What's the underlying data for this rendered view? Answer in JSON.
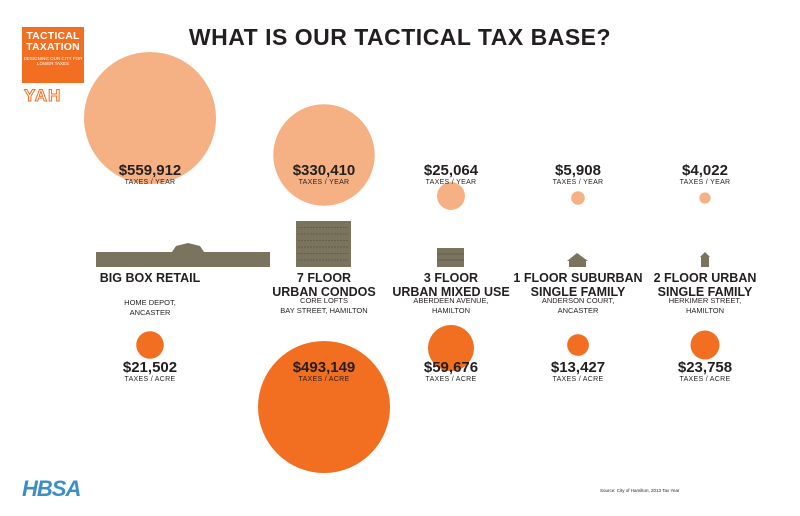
{
  "logo": {
    "line1": "TACTICAL",
    "line2": "TAXATION",
    "line3": "DESIGNING OUR CITY FOR LOWER TAXES",
    "sub": "YAH"
  },
  "title": "WHAT IS OUR TACTICAL TAX BASE?",
  "footer_logo": "HBSA",
  "source": "Source: City of Hamilton, 2013 Tax Year",
  "colors": {
    "year_bubble": "#f5b183",
    "acre_bubble": "#f26f21",
    "building": "#7a735d",
    "text": "#231f20"
  },
  "chart_data": {
    "type": "bubble",
    "categories": [
      "BIG BOX RETAIL",
      "7 FLOOR URBAN CONDOS",
      "3 FLOOR URBAN MIXED USE",
      "1 FLOOR SUBURBAN SINGLE FAMILY",
      "2 FLOOR URBAN SINGLE FAMILY"
    ],
    "name_lines": [
      [
        "BIG BOX RETAIL"
      ],
      [
        "7 FLOOR",
        "URBAN CONDOS"
      ],
      [
        "3 FLOOR",
        "URBAN MIXED USE"
      ],
      [
        "1 FLOOR SUBURBAN",
        "SINGLE FAMILY"
      ],
      [
        "2 FLOOR URBAN",
        "SINGLE FAMILY"
      ]
    ],
    "locations": [
      [
        "HOME DEPOT,",
        "ANCASTER"
      ],
      [
        "CORE LOFTS",
        "BAY STREET, HAMILTON"
      ],
      [
        "ABERDEEN AVENUE,",
        "HAMILTON"
      ],
      [
        "ANDERSON COURT,",
        "ANCASTER"
      ],
      [
        "HERKIMER STREET,",
        "HAMILTON"
      ]
    ],
    "series": [
      {
        "name": "TAXES / YEAR",
        "values": [
          559912,
          330410,
          25064,
          5908,
          4022
        ],
        "labels": [
          "$559,912",
          "$330,410",
          "$25,064",
          "$5,908",
          "$4,022"
        ]
      },
      {
        "name": "TAXES / ACRE",
        "values": [
          21502,
          493149,
          59676,
          13427,
          23758
        ],
        "labels": [
          "$21,502",
          "$493,149",
          "$59,676",
          "$13,427",
          "$23,758"
        ]
      }
    ]
  }
}
